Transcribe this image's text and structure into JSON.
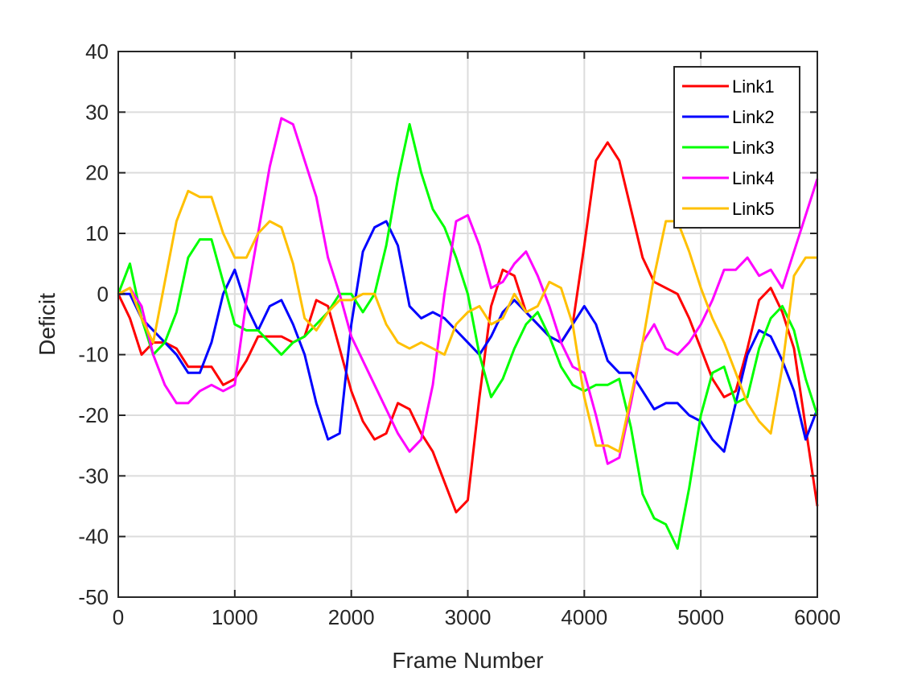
{
  "chart_data": {
    "type": "line",
    "title": "",
    "xlabel": "Frame Number",
    "ylabel": "Deficit",
    "xlim": [
      0,
      6000
    ],
    "ylim": [
      -50,
      40
    ],
    "xticks": [
      0,
      1000,
      2000,
      3000,
      4000,
      5000,
      6000
    ],
    "yticks": [
      -50,
      -40,
      -30,
      -20,
      -10,
      0,
      10,
      20,
      30,
      40
    ],
    "grid": true,
    "legend_position": "top-right",
    "series": [
      {
        "name": "Link1",
        "color": "#ff0000",
        "x": [
          0,
          100,
          200,
          300,
          400,
          500,
          600,
          700,
          800,
          900,
          1000,
          1100,
          1200,
          1300,
          1400,
          1500,
          1600,
          1700,
          1800,
          1900,
          2000,
          2100,
          2200,
          2300,
          2400,
          2500,
          2600,
          2700,
          2800,
          2900,
          3000,
          3100,
          3200,
          3300,
          3400,
          3500,
          3600,
          3700,
          3800,
          3900,
          4000,
          4100,
          4200,
          4300,
          4400,
          4500,
          4600,
          4700,
          4800,
          4900,
          5000,
          5100,
          5200,
          5300,
          5400,
          5500,
          5600,
          5700,
          5800,
          5900,
          6000
        ],
        "y": [
          0,
          -4,
          -10,
          -8,
          -8,
          -9,
          -12,
          -12,
          -12,
          -15,
          -14,
          -11,
          -7,
          -7,
          -7,
          -8,
          -7,
          -1,
          -2,
          -9,
          -16,
          -21,
          -24,
          -23,
          -18,
          -19,
          -23,
          -26,
          -31,
          -36,
          -34,
          -17,
          -2,
          4,
          3,
          -3,
          -5,
          -7,
          -8,
          -5,
          8,
          22,
          25,
          22,
          14,
          6,
          2,
          1,
          0,
          -4,
          -9,
          -14,
          -17,
          -16,
          -9,
          -1,
          1,
          -3,
          -9,
          -22,
          -35
        ]
      },
      {
        "name": "Link2",
        "color": "#0000ff",
        "x": [
          0,
          100,
          200,
          300,
          400,
          500,
          600,
          700,
          800,
          900,
          1000,
          1100,
          1200,
          1300,
          1400,
          1500,
          1600,
          1700,
          1800,
          1900,
          2000,
          2100,
          2200,
          2300,
          2400,
          2500,
          2600,
          2700,
          2800,
          2900,
          3000,
          3100,
          3200,
          3300,
          3400,
          3500,
          3600,
          3700,
          3800,
          3900,
          4000,
          4100,
          4200,
          4300,
          4400,
          4500,
          4600,
          4700,
          4800,
          4900,
          5000,
          5100,
          5200,
          5300,
          5400,
          5500,
          5600,
          5700,
          5800,
          5900,
          6000
        ],
        "y": [
          0,
          0,
          -4,
          -6,
          -8,
          -10,
          -13,
          -13,
          -8,
          0,
          4,
          -2,
          -6,
          -2,
          -1,
          -5,
          -10,
          -18,
          -24,
          -23,
          -5,
          7,
          11,
          12,
          8,
          -2,
          -4,
          -3,
          -4,
          -6,
          -8,
          -10,
          -7,
          -3,
          -1,
          -3,
          -5,
          -7,
          -8,
          -5,
          -2,
          -5,
          -11,
          -13,
          -13,
          -16,
          -19,
          -18,
          -18,
          -20,
          -21,
          -24,
          -26,
          -18,
          -10,
          -6,
          -7,
          -11,
          -16,
          -24,
          -19
        ]
      },
      {
        "name": "Link3",
        "color": "#00ff00",
        "x": [
          0,
          100,
          200,
          300,
          400,
          500,
          600,
          700,
          800,
          900,
          1000,
          1100,
          1200,
          1300,
          1400,
          1500,
          1600,
          1700,
          1800,
          1900,
          2000,
          2100,
          2200,
          2300,
          2400,
          2500,
          2600,
          2700,
          2800,
          2900,
          3000,
          3100,
          3200,
          3300,
          3400,
          3500,
          3600,
          3700,
          3800,
          3900,
          4000,
          4100,
          4200,
          4300,
          4400,
          4500,
          4600,
          4700,
          4800,
          4900,
          5000,
          5100,
          5200,
          5300,
          5400,
          5500,
          5600,
          5700,
          5800,
          5900,
          6000
        ],
        "y": [
          0,
          5,
          -4,
          -10,
          -8,
          -3,
          6,
          9,
          9,
          2,
          -5,
          -6,
          -6,
          -8,
          -10,
          -8,
          -7,
          -5,
          -3,
          0,
          0,
          -3,
          0,
          8,
          19,
          28,
          20,
          14,
          11,
          6,
          0,
          -10,
          -17,
          -14,
          -9,
          -5,
          -3,
          -7,
          -12,
          -15,
          -16,
          -15,
          -15,
          -14,
          -22,
          -33,
          -37,
          -38,
          -42,
          -32,
          -20,
          -13,
          -12,
          -18,
          -17,
          -9,
          -4,
          -2,
          -6,
          -14,
          -20
        ]
      },
      {
        "name": "Link4",
        "color": "#ff00ff",
        "x": [
          0,
          100,
          200,
          300,
          400,
          500,
          600,
          700,
          800,
          900,
          1000,
          1100,
          1200,
          1300,
          1400,
          1500,
          1600,
          1700,
          1800,
          1900,
          2000,
          2100,
          2200,
          2300,
          2400,
          2500,
          2600,
          2700,
          2800,
          2900,
          3000,
          3100,
          3200,
          3300,
          3400,
          3500,
          3600,
          3700,
          3800,
          3900,
          4000,
          4100,
          4200,
          4300,
          4400,
          4500,
          4600,
          4700,
          4800,
          4900,
          5000,
          5100,
          5200,
          5300,
          5400,
          5500,
          5600,
          5700,
          5800,
          5900,
          6000
        ],
        "y": [
          0,
          1,
          -2,
          -10,
          -15,
          -18,
          -18,
          -16,
          -15,
          -16,
          -15,
          -1,
          10,
          21,
          29,
          28,
          22,
          16,
          6,
          0,
          -7,
          -11,
          -15,
          -19,
          -23,
          -26,
          -24,
          -15,
          0,
          12,
          13,
          8,
          1,
          2,
          5,
          7,
          3,
          -2,
          -8,
          -12,
          -13,
          -20,
          -28,
          -27,
          -18,
          -8,
          -5,
          -9,
          -10,
          -8,
          -5,
          -1,
          4,
          4,
          6,
          3,
          4,
          1,
          7,
          13,
          19
        ]
      },
      {
        "name": "Link5",
        "color": "#ffc000",
        "x": [
          0,
          100,
          200,
          300,
          400,
          500,
          600,
          700,
          800,
          900,
          1000,
          1100,
          1200,
          1300,
          1400,
          1500,
          1600,
          1700,
          1800,
          1900,
          2000,
          2100,
          2200,
          2300,
          2400,
          2500,
          2600,
          2700,
          2800,
          2900,
          3000,
          3100,
          3200,
          3300,
          3400,
          3500,
          3600,
          3700,
          3800,
          3900,
          4000,
          4100,
          4200,
          4300,
          4400,
          4500,
          4600,
          4700,
          4800,
          4900,
          5000,
          5100,
          5200,
          5300,
          5400,
          5500,
          5600,
          5700,
          5800,
          5900,
          6000
        ],
        "y": [
          0,
          1,
          -4,
          -8,
          2,
          12,
          17,
          16,
          16,
          10,
          6,
          6,
          10,
          12,
          11,
          5,
          -4,
          -6,
          -3,
          -1,
          -1,
          0,
          0,
          -5,
          -8,
          -9,
          -8,
          -9,
          -10,
          -5,
          -3,
          -2,
          -5,
          -4,
          0,
          -3,
          -2,
          2,
          1,
          -5,
          -17,
          -25,
          -25,
          -26,
          -17,
          -8,
          3,
          12,
          12,
          7,
          1,
          -4,
          -8,
          -13,
          -18,
          -21,
          -23,
          -12,
          3,
          6,
          6
        ]
      }
    ]
  }
}
